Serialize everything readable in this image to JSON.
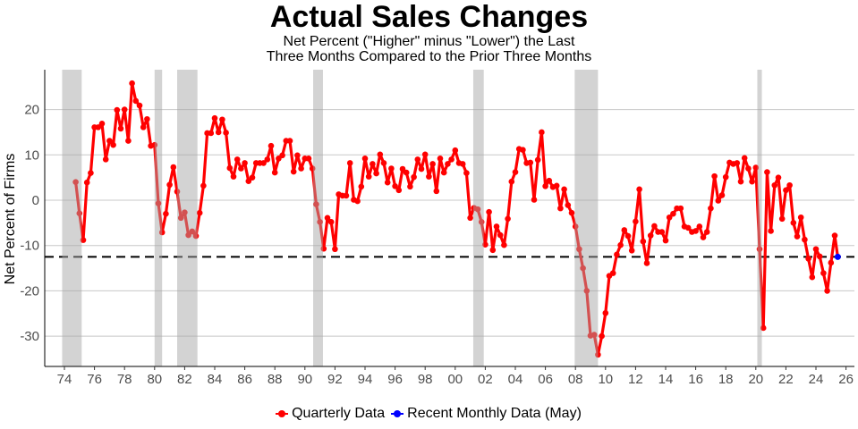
{
  "chart_data": {
    "type": "line",
    "title": "Actual Sales Changes",
    "subtitle": [
      "Net Percent (\"Higher\" minus \"Lower\") the Last",
      "Three Months Compared to the Prior Three Months"
    ],
    "xlabel": "",
    "ylabel": "Net Percent of Firms",
    "xlim": [
      1973.2,
      2026.6
    ],
    "ylim": [
      -37,
      29
    ],
    "x_ticks": [
      1974,
      1976,
      1978,
      1980,
      1982,
      1984,
      1986,
      1988,
      1990,
      1992,
      1994,
      1996,
      1998,
      2000,
      2002,
      2004,
      2006,
      2008,
      2010,
      2012,
      2014,
      2016,
      2018,
      2020,
      2022,
      2024,
      2026
    ],
    "x_tick_labels": [
      "74",
      "76",
      "78",
      "80",
      "82",
      "84",
      "86",
      "88",
      "90",
      "92",
      "94",
      "96",
      "98",
      "00",
      "02",
      "04",
      "06",
      "08",
      "10",
      "12",
      "14",
      "16",
      "18",
      "20",
      "22",
      "24",
      "26"
    ],
    "y_ticks": [
      -30,
      -20,
      -10,
      0,
      10,
      20
    ],
    "y_tick_labels": [
      "-30",
      "-20",
      "-10",
      "0",
      "10",
      "20"
    ],
    "grid": "horizontal",
    "legend_position": "bottom",
    "recession_bands": [
      [
        1973.85,
        1975.15
      ],
      [
        1980.0,
        1980.5
      ],
      [
        1981.5,
        1982.85
      ],
      [
        1990.55,
        1991.2
      ],
      [
        2001.2,
        2001.9
      ],
      [
        2007.95,
        2009.5
      ],
      [
        2020.1,
        2020.4
      ]
    ],
    "reference_line": -12.5,
    "series": [
      {
        "name": "Quarterly Data",
        "color": "#ff0000",
        "first_period": "1974 Q4",
        "x_start": 1974.75,
        "x_step": 0.25,
        "values": [
          4.0,
          -2.9,
          -8.8,
          3.9,
          6.0,
          16.1,
          16.1,
          16.9,
          9.0,
          13.1,
          12.2,
          19.9,
          15.8,
          20.0,
          13.1,
          25.8,
          21.9,
          20.9,
          16.1,
          17.9,
          12.0,
          12.2,
          -0.7,
          -7.1,
          -3.0,
          3.4,
          7.3,
          1.9,
          -3.9,
          -2.7,
          -7.7,
          -6.9,
          -7.9,
          -2.8,
          3.2,
          14.8,
          14.8,
          18.1,
          15.0,
          17.8,
          14.9,
          7.1,
          5.2,
          9.0,
          7.0,
          8.2,
          4.2,
          5.0,
          8.2,
          8.2,
          8.2,
          9.0,
          12.0,
          6.1,
          9.2,
          9.9,
          13.1,
          13.1,
          6.3,
          9.9,
          7.0,
          9.2,
          9.2,
          7.0,
          -0.9,
          -4.8,
          -10.7,
          -3.9,
          -4.8,
          -10.8,
          1.3,
          1.0,
          1.0,
          8.2,
          0.1,
          -0.2,
          3.0,
          9.2,
          5.2,
          8.0,
          5.9,
          10.1,
          8.2,
          3.9,
          7.0,
          3.1,
          2.2,
          6.9,
          6.1,
          3.0,
          5.1,
          9.0,
          6.9,
          10.1,
          5.2,
          8.0,
          2.0,
          9.2,
          6.1,
          8.0,
          9.0,
          11.0,
          8.2,
          8.0,
          6.0,
          -3.9,
          -1.7,
          -2.0,
          -4.8,
          -9.8,
          -2.6,
          -11.0,
          -5.8,
          -7.7,
          -9.9,
          -4.1,
          4.1,
          6.2,
          11.3,
          11.1,
          8.2,
          8.3,
          0.1,
          8.9,
          15.0,
          3.1,
          4.3,
          2.9,
          3.2,
          -1.8,
          2.4,
          -1.1,
          -2.8,
          -5.8,
          -10.8,
          -15.0,
          -20.0,
          -29.9,
          -29.7,
          -34.1,
          -30.0,
          -24.9,
          -16.7,
          -16.1,
          -12.0,
          -9.9,
          -6.6,
          -7.9,
          -11.1,
          -4.7,
          2.4,
          -9.1,
          -13.9,
          -7.8,
          -5.7,
          -7.0,
          -7.0,
          -8.9,
          -3.8,
          -3.0,
          -1.8,
          -1.8,
          -5.8,
          -6.1,
          -7.0,
          -6.8,
          -5.8,
          -8.2,
          -7.0,
          -1.8,
          5.3,
          -0.1,
          1.1,
          5.1,
          8.3,
          8.0,
          8.2,
          4.1,
          9.3,
          7.0,
          4.1,
          7.2,
          -10.8,
          -28.2,
          6.2,
          -6.8,
          3.3,
          5.0,
          -4.1,
          2.2,
          3.3,
          -5.0,
          -8.0,
          -3.8,
          -8.7,
          -12.9,
          -17.0,
          -10.8,
          -12.4,
          -16.1,
          -20.0,
          -13.8,
          -7.8
        ]
      },
      {
        "name": "Recent Monthly Data (May)",
        "color": "#0000ff",
        "x": [
          2025.45
        ],
        "values": [
          -12.5
        ]
      }
    ]
  }
}
